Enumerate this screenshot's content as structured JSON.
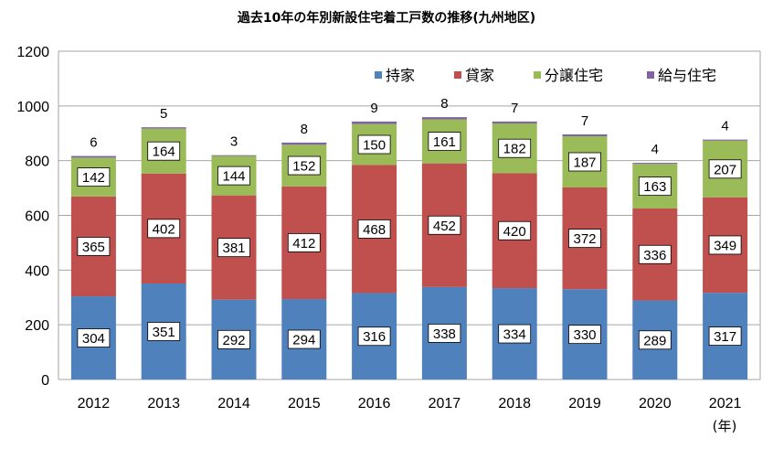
{
  "chart_data": {
    "type": "bar",
    "stacked": true,
    "title": "過去10年の年別新設住宅着工戸数の推移(九州地区)",
    "xunit": "(年)",
    "categories": [
      "2012",
      "2013",
      "2014",
      "2015",
      "2016",
      "2017",
      "2018",
      "2019",
      "2020",
      "2021"
    ],
    "series": [
      {
        "name": "持家",
        "color": "#4F81BD",
        "values": [
          304,
          351,
          292,
          294,
          316,
          338,
          334,
          330,
          289,
          317
        ]
      },
      {
        "name": "貸家",
        "color": "#C0504D",
        "values": [
          365,
          402,
          381,
          412,
          468,
          452,
          420,
          372,
          336,
          349
        ]
      },
      {
        "name": "分譲住宅",
        "color": "#9BBB59",
        "values": [
          142,
          164,
          144,
          152,
          150,
          161,
          182,
          187,
          163,
          207
        ]
      },
      {
        "name": "給与住宅",
        "color": "#8064A2",
        "values": [
          6,
          5,
          3,
          8,
          9,
          8,
          7,
          7,
          4,
          4
        ]
      }
    ],
    "ylim": [
      0,
      1200
    ],
    "yticks": [
      0,
      200,
      400,
      600,
      800,
      1000,
      1200
    ],
    "grid": true,
    "legend_position": "top-right"
  }
}
